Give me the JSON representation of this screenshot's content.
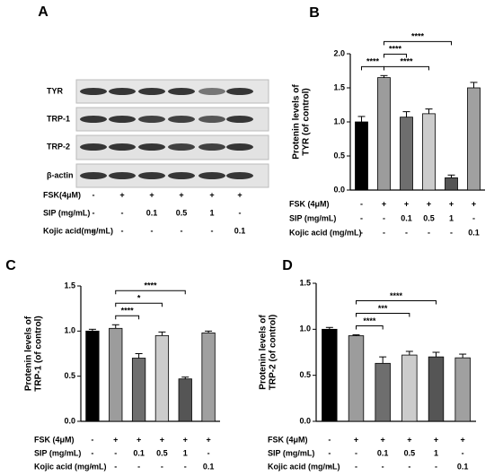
{
  "blot": {
    "panel": "A",
    "rows": [
      "TYR",
      "TRP-1",
      "TRP-2",
      "β-actin"
    ],
    "conditions": [
      {
        "name": "FSK(4μM)",
        "values": [
          "-",
          "+",
          "+",
          "+",
          "+",
          "+"
        ]
      },
      {
        "name": "SIP (mg/mL)",
        "values": [
          "-",
          "-",
          "0.1",
          "0.5",
          "1",
          "-"
        ]
      },
      {
        "name": "Kojic acid(mg/mL)",
        "values": [
          "-",
          "-",
          "-",
          "-",
          "-",
          "0.1"
        ]
      }
    ]
  },
  "chart_data": [
    {
      "type": "bar",
      "panel": "B",
      "ylabel": [
        "Protenin levels of",
        "TYR (of control)"
      ],
      "values": [
        1.0,
        1.65,
        1.07,
        1.12,
        0.18,
        1.5
      ],
      "errors": [
        0.08,
        0.03,
        0.08,
        0.07,
        0.04,
        0.08
      ],
      "colors": [
        "#000000",
        "#9c9c9c",
        "#6e6e6e",
        "#cccccc",
        "#555555",
        "#a0a0a0"
      ],
      "ylim": [
        0,
        2.0
      ],
      "yticks": [
        {
          "value": 0,
          "label": "0.0"
        },
        0.5,
        {
          "value": 1,
          "label": "1.0"
        },
        1.5,
        {
          "value": 2,
          "label": "2.0"
        }
      ],
      "brackets": [
        {
          "between": [
            0,
            1
          ],
          "label": "****"
        },
        {
          "between": [
            1,
            3
          ],
          "label": "****"
        },
        {
          "between": [
            1,
            2
          ],
          "label": "****"
        },
        {
          "between": [
            1,
            4
          ],
          "label": "****"
        }
      ],
      "conditions": [
        {
          "name": "FSK (4μM)",
          "values": [
            "-",
            "+",
            "+",
            "+",
            "+",
            "+"
          ]
        },
        {
          "name": "SIP (mg/mL)",
          "values": [
            "-",
            "-",
            "0.1",
            "0.5",
            "1",
            "-"
          ]
        },
        {
          "name": "Kojic acid (mg/mL)",
          "values": [
            "-",
            "-",
            "-",
            "-",
            "-",
            "0.1"
          ]
        }
      ]
    },
    {
      "type": "bar",
      "panel": "C",
      "ylabel": [
        "Protenin levels of",
        "TRP-1 (of control)"
      ],
      "values": [
        1.0,
        1.03,
        0.7,
        0.95,
        0.47,
        0.98
      ],
      "errors": [
        0.02,
        0.04,
        0.05,
        0.04,
        0.02,
        0.02
      ],
      "colors": [
        "#000000",
        "#9c9c9c",
        "#6e6e6e",
        "#cccccc",
        "#555555",
        "#a0a0a0"
      ],
      "ylim": [
        0,
        1.5
      ],
      "yticks": [
        {
          "value": 0,
          "label": "0.0"
        },
        0.5,
        {
          "value": 1,
          "label": "1.0"
        },
        1.5
      ],
      "brackets": [
        {
          "between": [
            1,
            2
          ],
          "label": "****"
        },
        {
          "between": [
            1,
            3
          ],
          "label": "*"
        },
        {
          "between": [
            1,
            4
          ],
          "label": "****"
        }
      ],
      "conditions": [
        {
          "name": "FSK (4μM)",
          "values": [
            "-",
            "+",
            "+",
            "+",
            "+",
            "+"
          ]
        },
        {
          "name": "SIP (mg/mL)",
          "values": [
            "-",
            "-",
            "0.1",
            "0.5",
            "1",
            "-"
          ]
        },
        {
          "name": "Kojic acid (mg/mL)",
          "values": [
            "-",
            "-",
            "-",
            "-",
            "-",
            "0.1"
          ]
        }
      ]
    },
    {
      "type": "bar",
      "panel": "D",
      "ylabel": [
        "Protenin levels of",
        "TRP-2 (of control)"
      ],
      "values": [
        1.0,
        0.93,
        0.63,
        0.72,
        0.7,
        0.69
      ],
      "errors": [
        0.02,
        0.01,
        0.07,
        0.04,
        0.05,
        0.04
      ],
      "colors": [
        "#000000",
        "#9c9c9c",
        "#6e6e6e",
        "#cccccc",
        "#555555",
        "#a0a0a0"
      ],
      "ylim": [
        0,
        1.5
      ],
      "yticks": [
        {
          "value": 0,
          "label": "0.0"
        },
        0.5,
        {
          "value": 1,
          "label": "1.0"
        },
        1.5
      ],
      "brackets": [
        {
          "between": [
            1,
            2
          ],
          "label": "****"
        },
        {
          "between": [
            1,
            3
          ],
          "label": "***"
        },
        {
          "between": [
            1,
            4
          ],
          "label": "****"
        }
      ],
      "conditions": [
        {
          "name": "FSK (4μM)",
          "values": [
            "-",
            "+",
            "+",
            "+",
            "+",
            "+"
          ]
        },
        {
          "name": "SIP (mg/mL)",
          "values": [
            "-",
            "-",
            "0.1",
            "0.5",
            "1",
            "-"
          ]
        },
        {
          "name": "Kojic acid (mg/mL)",
          "values": [
            "-",
            "-",
            "-",
            "-",
            "-",
            "0.1"
          ]
        }
      ]
    }
  ]
}
